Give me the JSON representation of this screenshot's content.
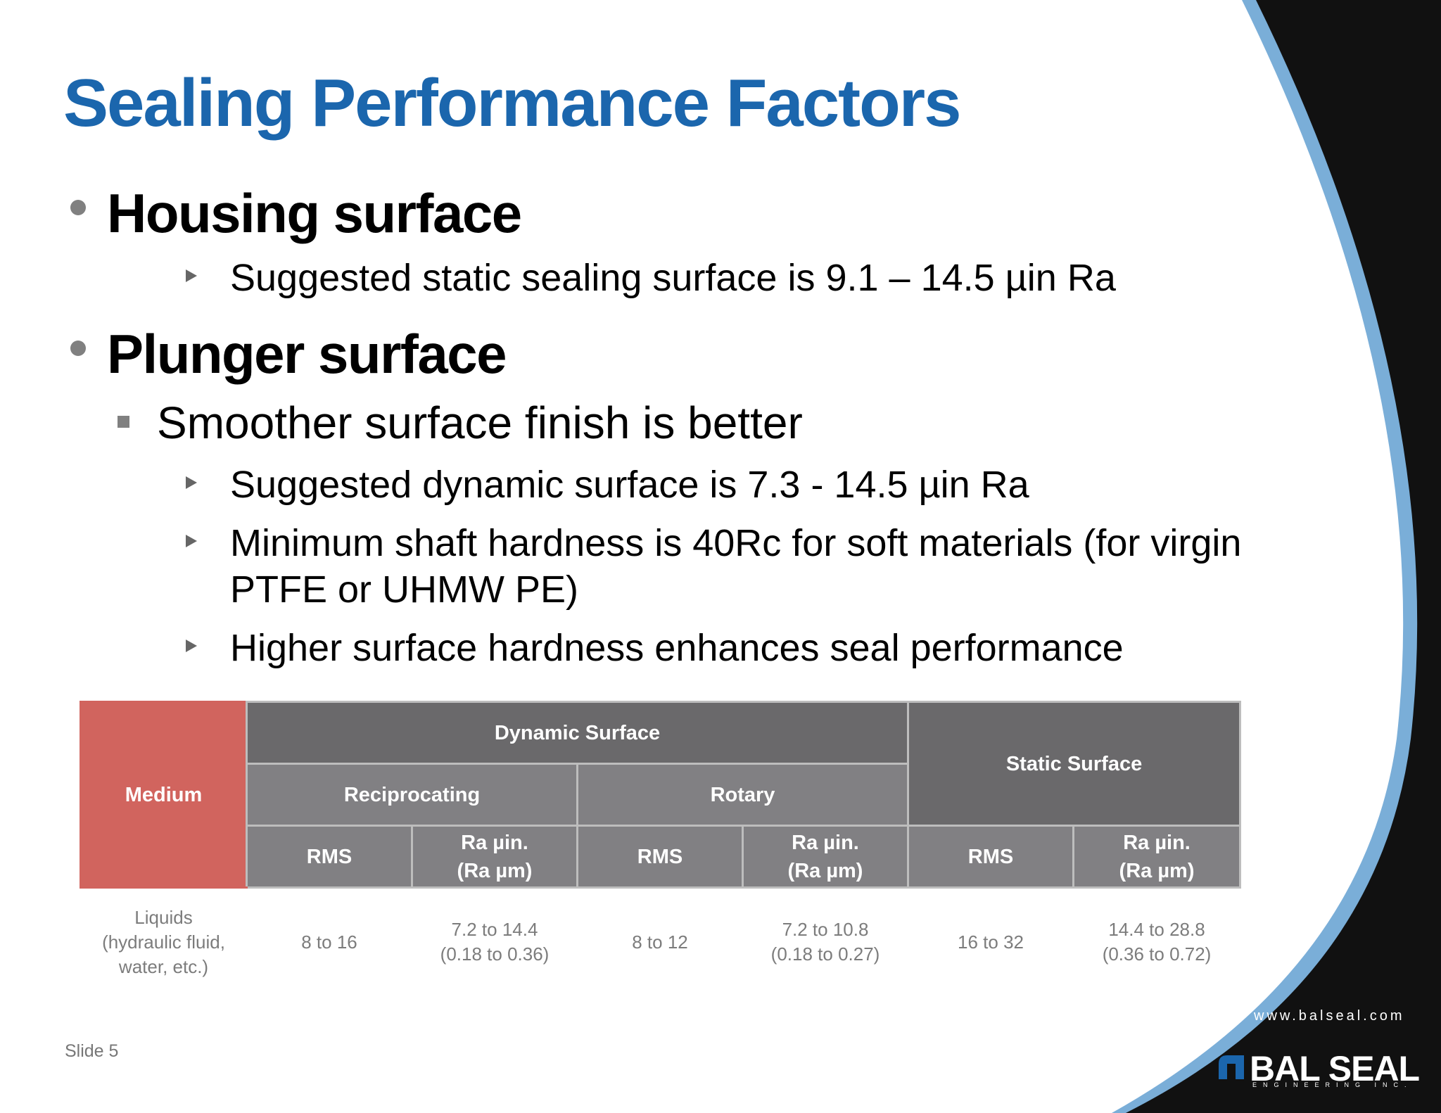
{
  "slide": {
    "title": "Sealing Performance Factors",
    "slide_number": "Slide 5",
    "website": "www.balseal.com",
    "logo": {
      "name": "BAL SEAL",
      "subtitle": "ENGINEERING INC."
    },
    "colors": {
      "title": "#1b66ad",
      "accent_blue": "#7aaed8",
      "dark_panel": "#111111",
      "medium_header": "#d1645e",
      "table_header_dark": "#6a696b",
      "table_header_mid": "#818083"
    }
  },
  "bullets": {
    "housing": {
      "heading": "Housing surface",
      "sub": [
        "Suggested static sealing surface is 9.1 – 14.5 µin Ra"
      ]
    },
    "plunger": {
      "heading": "Plunger surface",
      "point": "Smoother surface finish is better",
      "sub": [
        "Suggested dynamic surface is 7.3 - 14.5 µin Ra",
        "Minimum shaft hardness is 40Rc for soft materials (for virgin PTFE or UHMW PE)",
        "Higher surface hardness enhances seal performance"
      ]
    }
  },
  "table": {
    "medium": "Medium",
    "dynamic": "Dynamic Surface",
    "static": "Static Surface",
    "reciprocating": "Reciprocating",
    "rotary": "Rotary",
    "rms": "RMS",
    "ra_line1": "Ra µin.",
    "ra_line2": "(Ra µm)",
    "row": {
      "medium_lines": [
        "Liquids",
        "(hydraulic fluid,",
        "water, etc.)"
      ],
      "recip_rms": "8 to 16",
      "recip_ra": [
        "7.2 to 14.4",
        "(0.18 to 0.36)"
      ],
      "rotary_rms": "8 to 12",
      "rotary_ra": [
        "7.2 to 10.8",
        "(0.18 to 0.27)"
      ],
      "static_rms": "16 to 32",
      "static_ra": [
        "14.4 to 28.8",
        "(0.36 to 0.72)"
      ]
    }
  }
}
